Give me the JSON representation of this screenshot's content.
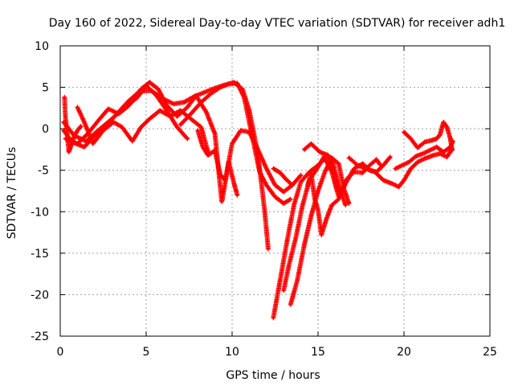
{
  "chart_data": {
    "type": "scatter",
    "title": "Day 160 of 2022, Sidereal Day-to-day VTEC variation (SDTVAR) for receiver adh1",
    "xlabel": "GPS time / hours",
    "ylabel": "SDTVAR / TECUs",
    "xlim": [
      0,
      25
    ],
    "ylim": [
      -25,
      10
    ],
    "xticks": [
      0,
      5,
      10,
      15,
      20,
      25
    ],
    "yticks": [
      -25,
      -20,
      -15,
      -10,
      -5,
      0,
      5,
      10
    ],
    "grid": true,
    "marker": "plus",
    "color": "#ff0000",
    "series": [
      {
        "points": [
          [
            0.2,
            0.8
          ],
          [
            0.8,
            -0.8
          ],
          [
            1.5,
            -1.5
          ],
          [
            2.2,
            -0.2
          ],
          [
            3.0,
            1.2
          ],
          [
            3.8,
            2.6
          ],
          [
            4.5,
            3.8
          ],
          [
            5.0,
            5.2
          ],
          [
            5.6,
            4.0
          ],
          [
            6.2,
            2.2
          ],
          [
            6.8,
            0.2
          ],
          [
            7.4,
            -1.2
          ]
        ]
      },
      {
        "points": [
          [
            0.3,
            -1.2
          ],
          [
            1.0,
            -1.8
          ],
          [
            1.6,
            -0.6
          ],
          [
            2.3,
            1.2
          ],
          [
            2.8,
            2.4
          ],
          [
            3.4,
            1.8
          ],
          [
            4.0,
            2.8
          ],
          [
            4.7,
            4.8
          ],
          [
            5.2,
            5.6
          ],
          [
            5.7,
            4.8
          ],
          [
            6.2,
            2.8
          ],
          [
            6.8,
            1.5
          ],
          [
            7.4,
            2.6
          ],
          [
            7.9,
            4.0
          ],
          [
            8.5,
            2.0
          ],
          [
            9.0,
            -0.6
          ],
          [
            9.4,
            -8.8
          ],
          [
            9.6,
            -6.5
          ],
          [
            9.8,
            -4.0
          ],
          [
            10.1,
            -6.5
          ],
          [
            10.3,
            -8.0
          ]
        ]
      },
      {
        "points": [
          [
            0.25,
            3.8
          ],
          [
            0.3,
            1.5
          ],
          [
            0.4,
            -0.5
          ],
          [
            0.5,
            -2.8
          ],
          [
            0.6,
            -2.2
          ],
          [
            0.8,
            -1.0
          ],
          [
            1.0,
            -0.2
          ],
          [
            1.2,
            0.3
          ]
        ]
      },
      {
        "points": [
          [
            1.0,
            2.6
          ],
          [
            1.4,
            0.8
          ],
          [
            1.9,
            -1.8
          ],
          [
            2.5,
            -0.2
          ],
          [
            3.1,
            0.8
          ],
          [
            3.6,
            0.2
          ],
          [
            4.2,
            -1.5
          ],
          [
            4.7,
            0.2
          ],
          [
            5.2,
            1.2
          ],
          [
            5.8,
            2.2
          ],
          [
            6.4,
            1.5
          ],
          [
            7.0,
            2.2
          ],
          [
            7.6,
            1.2
          ],
          [
            8.2,
            0.2
          ],
          [
            8.6,
            -2.8
          ]
        ]
      },
      {
        "points": [
          [
            0.2,
            -0.2
          ],
          [
            0.7,
            -1.6
          ],
          [
            1.4,
            -2.2
          ],
          [
            2.0,
            -0.8
          ],
          [
            2.6,
            0.2
          ],
          [
            3.2,
            1.6
          ],
          [
            3.9,
            3.2
          ],
          [
            4.6,
            4.5
          ],
          [
            5.3,
            4.6
          ],
          [
            6.0,
            3.6
          ],
          [
            6.6,
            3.0
          ],
          [
            7.2,
            3.2
          ],
          [
            7.8,
            3.9
          ],
          [
            8.4,
            4.4
          ],
          [
            9.0,
            4.9
          ],
          [
            9.6,
            5.3
          ],
          [
            10.1,
            5.6
          ],
          [
            10.6,
            4.8
          ],
          [
            11.0,
            2.2
          ],
          [
            11.5,
            -3.0
          ],
          [
            11.9,
            -10.0
          ],
          [
            12.1,
            -14.5
          ]
        ]
      },
      {
        "points": [
          [
            7.0,
            0.5
          ],
          [
            7.6,
            1.8
          ],
          [
            8.2,
            3.2
          ],
          [
            8.8,
            4.3
          ],
          [
            9.3,
            5.0
          ],
          [
            9.8,
            5.4
          ],
          [
            10.3,
            5.5
          ],
          [
            10.7,
            3.8
          ],
          [
            11.0,
            0.8
          ],
          [
            11.3,
            -2.2
          ],
          [
            11.6,
            -5.2
          ],
          [
            12.0,
            -6.8
          ],
          [
            12.5,
            -8.2
          ],
          [
            13.0,
            -9.0
          ],
          [
            13.4,
            -8.5
          ]
        ]
      },
      {
        "points": [
          [
            8.0,
            -0.2
          ],
          [
            8.3,
            -2.2
          ],
          [
            8.6,
            -3.2
          ],
          [
            9.0,
            -2.6
          ],
          [
            9.3,
            -5.5
          ],
          [
            9.6,
            -6.2
          ],
          [
            10.0,
            -1.8
          ],
          [
            10.5,
            -0.2
          ],
          [
            11.0,
            -0.4
          ],
          [
            11.5,
            -2.5
          ],
          [
            12.0,
            -4.8
          ],
          [
            12.5,
            -6.8
          ],
          [
            13.0,
            -7.6
          ],
          [
            13.5,
            -6.8
          ],
          [
            14.0,
            -5.6
          ]
        ]
      },
      {
        "points": [
          [
            12.4,
            -22.8
          ],
          [
            12.8,
            -18.2
          ],
          [
            13.2,
            -13.5
          ],
          [
            13.6,
            -9.2
          ],
          [
            14.0,
            -6.4
          ],
          [
            14.5,
            -5.2
          ],
          [
            15.0,
            -4.4
          ],
          [
            15.4,
            -3.6
          ],
          [
            15.8,
            -5.2
          ],
          [
            16.2,
            -8.2
          ]
        ]
      },
      {
        "points": [
          [
            13.0,
            -19.5
          ],
          [
            13.3,
            -16.5
          ],
          [
            13.7,
            -13.2
          ],
          [
            14.1,
            -9.2
          ],
          [
            14.5,
            -6.2
          ],
          [
            15.0,
            -4.6
          ],
          [
            15.4,
            -3.2
          ],
          [
            15.8,
            -3.5
          ],
          [
            16.2,
            -6.8
          ],
          [
            16.6,
            -9.2
          ]
        ]
      },
      {
        "points": [
          [
            13.4,
            -21.2
          ],
          [
            13.8,
            -18.2
          ],
          [
            14.2,
            -14.0
          ],
          [
            14.6,
            -10.5
          ],
          [
            15.0,
            -7.5
          ],
          [
            15.4,
            -5.2
          ],
          [
            15.8,
            -3.5
          ],
          [
            16.2,
            -4.2
          ],
          [
            16.5,
            -7.2
          ],
          [
            16.8,
            -9.0
          ]
        ]
      },
      {
        "points": [
          [
            14.4,
            -6.8
          ],
          [
            14.6,
            -5.4
          ],
          [
            14.8,
            -8.4
          ],
          [
            15.0,
            -9.8
          ],
          [
            15.2,
            -12.8
          ],
          [
            15.5,
            -10.8
          ],
          [
            15.8,
            -9.2
          ],
          [
            16.2,
            -8.5
          ],
          [
            16.6,
            -6.6
          ],
          [
            17.1,
            -4.8
          ],
          [
            17.6,
            -4.2
          ],
          [
            18.0,
            -5.0
          ],
          [
            18.4,
            -5.2
          ],
          [
            18.8,
            -4.4
          ],
          [
            19.2,
            -3.4
          ]
        ]
      },
      {
        "points": [
          [
            14.2,
            -2.5
          ],
          [
            14.6,
            -1.8
          ],
          [
            15.1,
            -2.8
          ],
          [
            15.6,
            -3.2
          ],
          [
            16.0,
            -5.8
          ],
          [
            16.3,
            -7.8
          ],
          [
            16.7,
            -6.0
          ],
          [
            17.1,
            -5.2
          ],
          [
            17.6,
            -5.3
          ],
          [
            18.0,
            -4.4
          ],
          [
            18.4,
            -3.7
          ],
          [
            18.6,
            -4.3
          ]
        ]
      },
      {
        "points": [
          [
            12.4,
            -4.8
          ],
          [
            12.8,
            -5.3
          ],
          [
            13.1,
            -6.0
          ],
          [
            13.5,
            -6.8
          ]
        ]
      },
      {
        "points": [
          [
            16.8,
            -3.5
          ],
          [
            17.3,
            -4.4
          ],
          [
            17.8,
            -4.8
          ],
          [
            18.3,
            -5.2
          ],
          [
            18.8,
            -6.2
          ],
          [
            19.3,
            -6.6
          ],
          [
            19.7,
            -7.0
          ],
          [
            20.0,
            -6.2
          ],
          [
            20.4,
            -4.8
          ],
          [
            20.8,
            -4.0
          ],
          [
            21.2,
            -3.6
          ],
          [
            21.7,
            -3.2
          ],
          [
            22.1,
            -3.0
          ],
          [
            22.5,
            -3.4
          ],
          [
            22.8,
            -2.4
          ]
        ]
      },
      {
        "points": [
          [
            19.5,
            -4.8
          ],
          [
            19.9,
            -4.4
          ],
          [
            20.3,
            -4.0
          ],
          [
            20.7,
            -3.3
          ],
          [
            21.1,
            -3.0
          ],
          [
            21.5,
            -2.6
          ],
          [
            21.9,
            -2.2
          ],
          [
            22.3,
            -2.8
          ],
          [
            22.7,
            -2.2
          ],
          [
            22.85,
            -1.5
          ]
        ]
      },
      {
        "points": [
          [
            20.0,
            -0.4
          ],
          [
            20.4,
            -1.2
          ],
          [
            20.8,
            -2.3
          ],
          [
            21.2,
            -1.6
          ],
          [
            21.6,
            -1.4
          ],
          [
            21.9,
            -1.2
          ],
          [
            22.1,
            -0.7
          ],
          [
            22.3,
            0.8
          ],
          [
            22.5,
            0.2
          ],
          [
            22.7,
            -1.2
          ],
          [
            22.8,
            -2.6
          ]
        ]
      }
    ]
  }
}
